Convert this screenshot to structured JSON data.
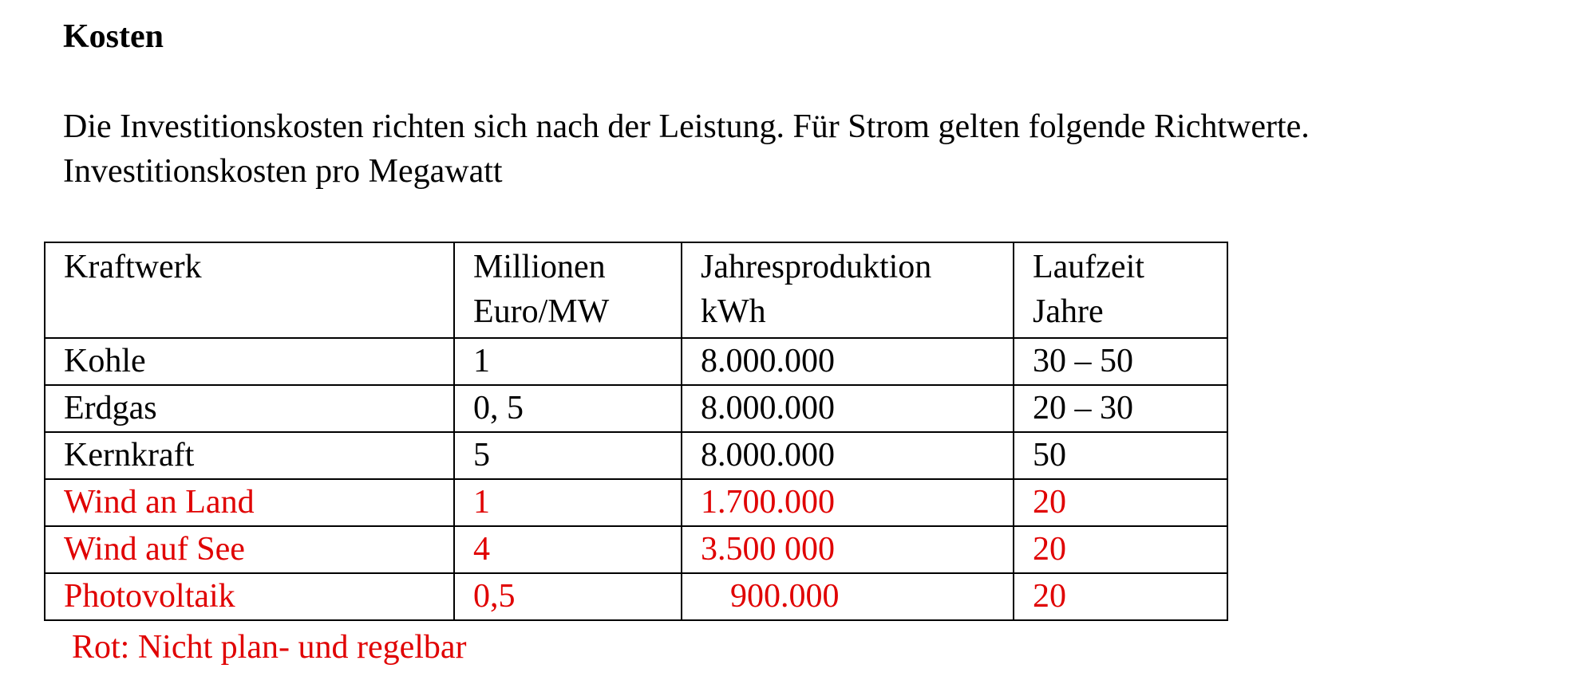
{
  "title": "Kosten",
  "intro_line1": "Die Investitionskosten richten sich nach der Leistung. Für Strom gelten folgende Richtwerte.",
  "intro_line2": "Investitionskosten pro Megawatt",
  "table": {
    "headers": [
      [
        "Kraftwerk",
        ""
      ],
      [
        "Millionen",
        "Euro/MW"
      ],
      [
        "Jahresproduktion",
        "kWh"
      ],
      [
        "Laufzeit",
        "Jahre"
      ]
    ],
    "rows": [
      {
        "cells": [
          "Kohle",
          "1",
          "8.000.000",
          "30 – 50"
        ],
        "red": false
      },
      {
        "cells": [
          "Erdgas",
          "0, 5",
          "8.000.000",
          "20 – 30"
        ],
        "red": false
      },
      {
        "cells": [
          "Kernkraft",
          "5",
          "8.000.000",
          "50"
        ],
        "red": false
      },
      {
        "cells": [
          "Wind an Land",
          "1",
          "1.700.000",
          "20"
        ],
        "red": true
      },
      {
        "cells": [
          "Wind auf See",
          "4",
          "3.500 000",
          "20"
        ],
        "red": true
      },
      {
        "cells": [
          "Photovoltaik",
          "0,5",
          "900.000",
          "20"
        ],
        "red": true
      }
    ]
  },
  "footnote": "Rot: Nicht plan- und regelbar",
  "colors": {
    "text": "#000000",
    "highlight": "#e00000"
  }
}
